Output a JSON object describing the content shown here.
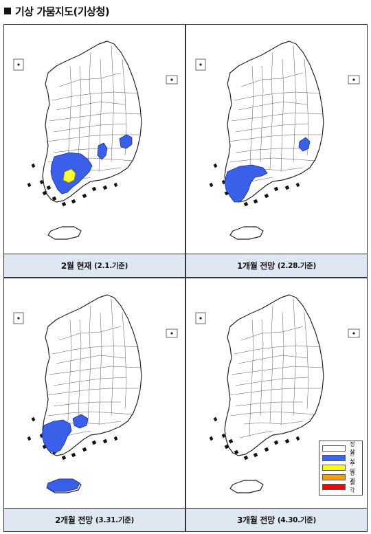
{
  "header": {
    "title": "기상 가뭄지도(기상청)"
  },
  "panels": [
    {
      "main": "2월 현재",
      "date": "(2.1.기준)"
    },
    {
      "main": "1개월 전망",
      "date": "(2.28.기준)"
    },
    {
      "main": "2개월 전망",
      "date": "(3.31.기준)"
    },
    {
      "main": "3개월 전망",
      "date": "(4.30.기준)"
    }
  ],
  "legend": {
    "items": [
      {
        "label": "정상",
        "color": "#ffffff"
      },
      {
        "label": "관심",
        "color": "#3366ff"
      },
      {
        "label": "주의",
        "color": "#ffff00"
      },
      {
        "label": "경계",
        "color": "#ff9900"
      },
      {
        "label": "심각",
        "color": "#ff0000"
      }
    ]
  },
  "colors": {
    "normal": "#ffffff",
    "watch": "#3a5fe8",
    "caution": "#ffff33",
    "caption_bg": "#dfe7f3"
  }
}
